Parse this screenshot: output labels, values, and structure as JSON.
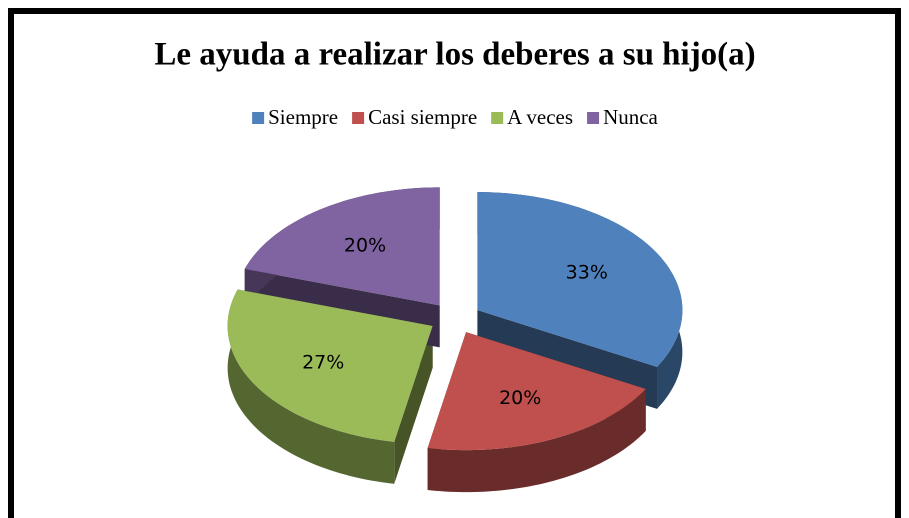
{
  "chart_data": {
    "type": "pie",
    "title": "Le ayuda a realizar los deberes a su hijo(a)",
    "categories": [
      "Siempre",
      "Casi siempre",
      "A veces",
      "Nunca"
    ],
    "values": [
      33,
      20,
      27,
      20
    ],
    "value_labels": [
      "33%",
      "20%",
      "27%",
      "20%"
    ],
    "colors": [
      "#4f81bd",
      "#c0504d",
      "#9bbb59",
      "#8064a2"
    ],
    "legend": "top"
  }
}
